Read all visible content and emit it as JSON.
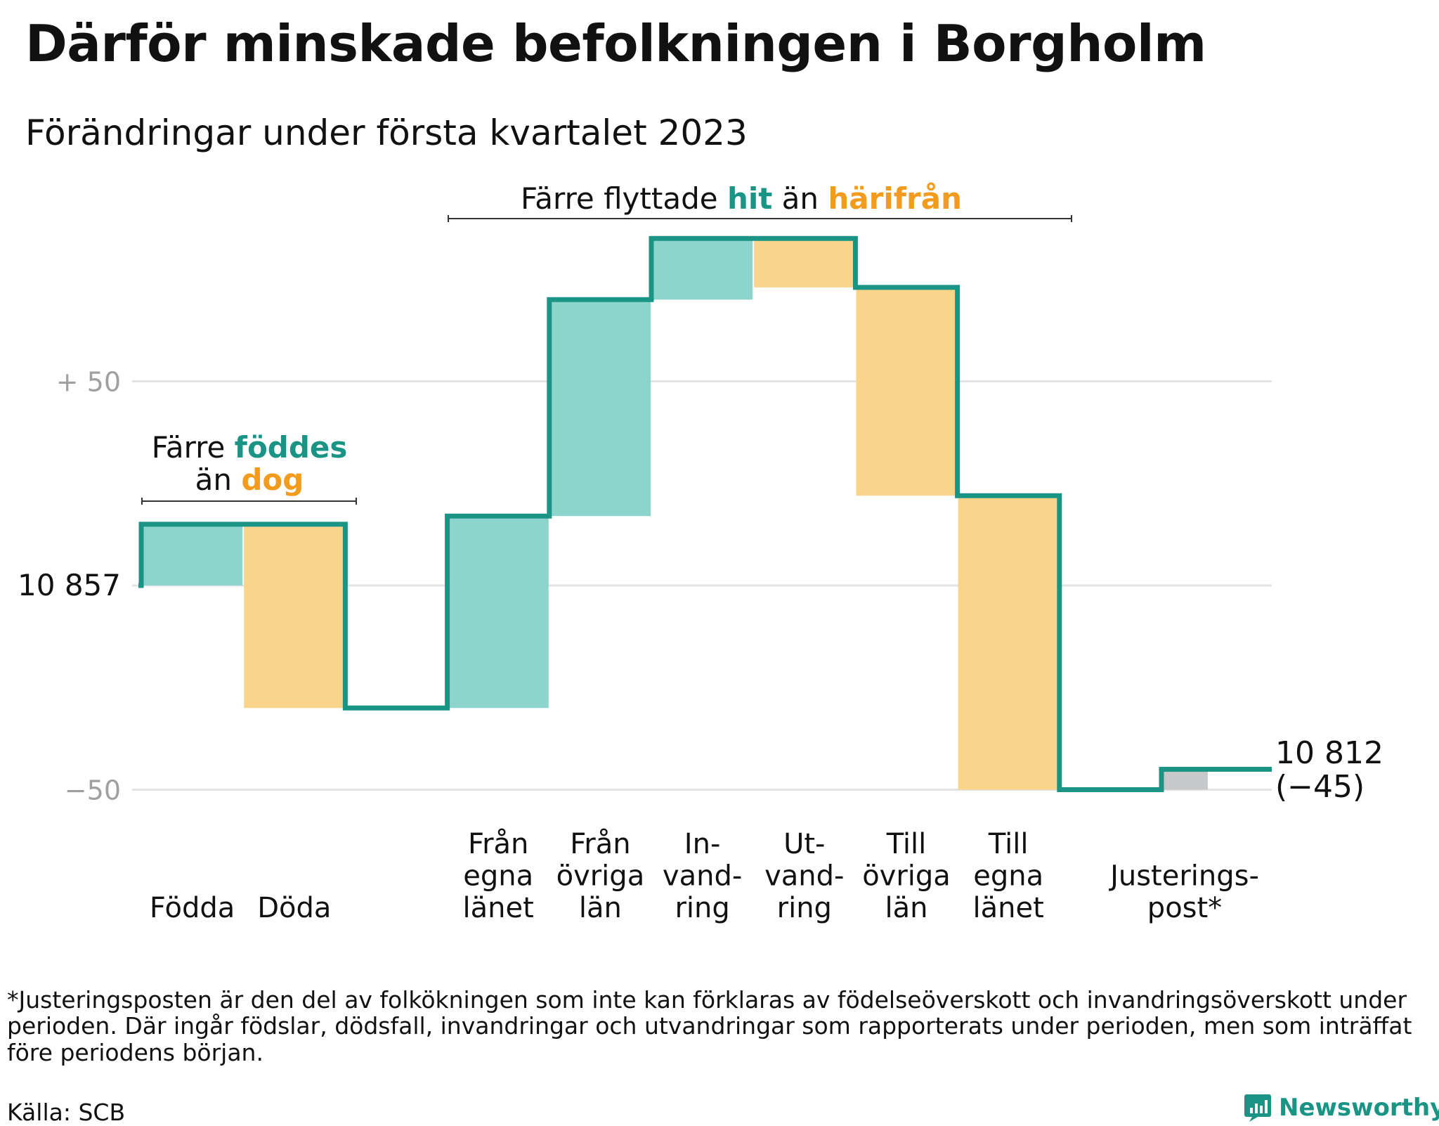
{
  "title": "Därför minskade befolkningen i Borgholm",
  "subtitle": "Förändringar under första kvartalet 2023",
  "footnote": "*Justeringsposten är den del av folkökningen som inte kan förklaras av födelseöverskott och invandringsöverskott under perioden. Där ingår födslar, dödsfall, invandringar och utvandringar som rapporterats under perioden, men som inträffat före periodens början.",
  "source": "Källa: SCB",
  "brand": "Newsworthy",
  "colors": {
    "increase_fill": "#8dd5cc",
    "decrease_fill": "#fad48b",
    "adjustment_fill": "#c7c8ca",
    "step_line": "#1a9585",
    "teal_text": "#1a9585",
    "orange_text": "#f29b1c",
    "grid": "#e3e3e3",
    "axis_text_muted": "#a0a0a0"
  },
  "annotations": {
    "births": {
      "line1_a": "Färre ",
      "line1_b": "föddes",
      "line2_a": "än ",
      "line2_b": "dog"
    },
    "moves": {
      "part_a": "Färre flyttade ",
      "part_b": "hit",
      "part_c": " än ",
      "part_d": "härifrån"
    }
  },
  "chart_data": {
    "type": "waterfall",
    "title": "Därför minskade befolkningen i Borgholm",
    "subtitle": "Förändringar under första kvartalet 2023",
    "start_value": 10857,
    "end_value": 10812,
    "end_change_label": "(−45)",
    "ylim": [
      -52,
      88
    ],
    "y_ticks": [
      {
        "value": 50,
        "label": "+ 50",
        "style": "muted"
      },
      {
        "value": 0,
        "label": "10 857",
        "style": "dark"
      },
      {
        "value": -50,
        "label": "−50",
        "style": "muted"
      }
    ],
    "grid": true,
    "steps": [
      {
        "label": [
          "Födda"
        ],
        "change": 15,
        "kind": "increase"
      },
      {
        "label": [
          "Döda"
        ],
        "change": -45,
        "kind": "decrease"
      },
      {
        "label": [],
        "change": 0,
        "kind": "gap"
      },
      {
        "label": [
          "Från",
          "egna",
          "länet"
        ],
        "change": 47,
        "kind": "increase"
      },
      {
        "label": [
          "Från",
          "övriga",
          "län"
        ],
        "change": 53,
        "kind": "increase"
      },
      {
        "label": [
          "In-",
          "vand-",
          "ring"
        ],
        "change": 15,
        "kind": "increase"
      },
      {
        "label": [
          "Ut-",
          "vand-",
          "ring"
        ],
        "change": -12,
        "kind": "decrease"
      },
      {
        "label": [
          "Till",
          "övriga",
          "län"
        ],
        "change": -51,
        "kind": "decrease"
      },
      {
        "label": [
          "Till",
          "egna",
          "länet"
        ],
        "change": -72,
        "kind": "decrease"
      },
      {
        "label": [],
        "change": 0,
        "kind": "gap"
      },
      {
        "label": [
          "Justerings-",
          "post*"
        ],
        "change": 5,
        "kind": "adjustment"
      }
    ]
  }
}
